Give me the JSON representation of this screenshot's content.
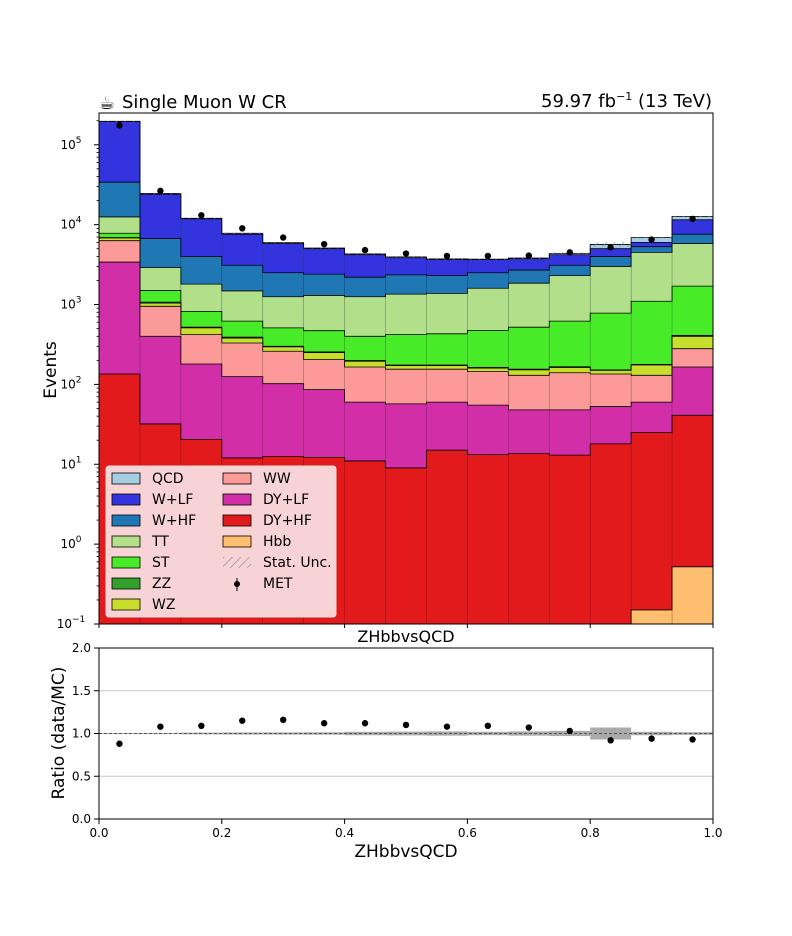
{
  "chart_data": [
    {
      "type": "stacked-histogram",
      "title_left": "Single Muon W CR",
      "title_left_icon": "coffee-cup",
      "title_right": "59.97 fb",
      "title_right_sup": "−1",
      "title_right_tail": " (13 TeV)",
      "ylabel": "Events",
      "xlabel": "ZHbbvsQCD",
      "yscale": "log",
      "ylim": [
        0.1,
        250000
      ],
      "xlim": [
        0.0,
        1.0
      ],
      "y_tick_labels": [
        "10",
        "10",
        "10",
        "10",
        "10",
        "10",
        "10"
      ],
      "y_tick_exps": [
        "−1",
        "0",
        "1",
        "2",
        "3",
        "4",
        "5"
      ],
      "bin_edges": [
        0.0,
        0.0667,
        0.1333,
        0.2,
        0.2667,
        0.3333,
        0.4,
        0.4667,
        0.5333,
        0.6,
        0.6667,
        0.7333,
        0.8,
        0.8667,
        0.9333,
        1.0
      ],
      "legend_placement": "lower-left",
      "legend": [
        {
          "label": "QCD",
          "kind": "box",
          "color": "#a6cee3"
        },
        {
          "label": "W+LF",
          "kind": "box",
          "color": "#3434df"
        },
        {
          "label": "W+HF",
          "kind": "box",
          "color": "#1f78b4"
        },
        {
          "label": "TT",
          "kind": "box",
          "color": "#b2df8a"
        },
        {
          "label": "ST",
          "kind": "box",
          "color": "#47eb28"
        },
        {
          "label": "ZZ",
          "kind": "box",
          "color": "#33a02c"
        },
        {
          "label": "WZ",
          "kind": "box",
          "color": "#c8de2c"
        },
        {
          "label": "WW",
          "kind": "box",
          "color": "#fb9a99"
        },
        {
          "label": "DY+LF",
          "kind": "box",
          "color": "#d12ea8"
        },
        {
          "label": "DY+HF",
          "kind": "box",
          "color": "#e31a1c"
        },
        {
          "label": "Hbb",
          "kind": "box",
          "color": "#fdbf6f"
        },
        {
          "label": "Stat. Unc.",
          "kind": "hatch",
          "color": "#888888"
        },
        {
          "label": "MET",
          "kind": "marker",
          "color": "#000000"
        }
      ],
      "stack_cumulative": [
        {
          "name": "Hbb",
          "color": "#fdbf6f",
          "values": [
            0.1,
            0.1,
            0.1,
            0.1,
            0.1,
            0.1,
            0.1,
            0.1,
            0.1,
            0.1,
            0.1,
            0.1,
            0.1,
            0.15,
            0.52
          ]
        },
        {
          "name": "DY+HF",
          "color": "#e31a1c",
          "values": [
            135,
            32,
            20.5,
            12,
            12.5,
            12.2,
            11,
            9,
            15,
            13.2,
            13.6,
            13,
            18,
            25,
            41
          ]
        },
        {
          "name": "DY+LF",
          "color": "#d12ea8",
          "values": [
            3400,
            400,
            180,
            125,
            102,
            86,
            60,
            57,
            60,
            55,
            48,
            48,
            53,
            60,
            165
          ]
        },
        {
          "name": "WW",
          "color": "#fb9a99",
          "values": [
            6300,
            950,
            420,
            330,
            260,
            205,
            165,
            155,
            155,
            145,
            130,
            140,
            135,
            130,
            280
          ]
        },
        {
          "name": "WZ",
          "color": "#c8de2c",
          "values": [
            6800,
            1040,
            510,
            380,
            295,
            250,
            195,
            172,
            172,
            160,
            152,
            163,
            150,
            175,
            400
          ]
        },
        {
          "name": "ZZ",
          "color": "#33a02c",
          "values": [
            6900,
            1070,
            520,
            390,
            300,
            255,
            200,
            175,
            175,
            163,
            155,
            166,
            152,
            178,
            410
          ]
        },
        {
          "name": "ST",
          "color": "#47eb28",
          "values": [
            7800,
            1500,
            820,
            620,
            510,
            470,
            400,
            420,
            430,
            475,
            520,
            620,
            780,
            1100,
            1700
          ]
        },
        {
          "name": "TT",
          "color": "#b2df8a",
          "values": [
            12500,
            2900,
            1800,
            1480,
            1250,
            1300,
            1250,
            1350,
            1380,
            1600,
            1850,
            2300,
            3000,
            4500,
            5800
          ]
        },
        {
          "name": "W+HF",
          "color": "#1f78b4",
          "values": [
            34000,
            6700,
            4000,
            3100,
            2500,
            2400,
            2200,
            2350,
            2300,
            2500,
            2700,
            3100,
            4000,
            5300,
            7600
          ]
        },
        {
          "name": "W+LF",
          "color": "#3434df",
          "values": [
            195000,
            24000,
            11800,
            7600,
            5800,
            5000,
            4200,
            3850,
            3650,
            3650,
            3750,
            4200,
            5000,
            6000,
            11500
          ]
        },
        {
          "name": "QCD",
          "color": "#a6cee3",
          "values": [
            197000,
            24500,
            12000,
            7800,
            5950,
            5100,
            4300,
            3950,
            3720,
            3700,
            3820,
            4350,
            5650,
            6900,
            12700
          ]
        }
      ],
      "data_series": {
        "name": "MET",
        "x": [
          0.0333,
          0.1,
          0.1667,
          0.2333,
          0.3,
          0.3667,
          0.4333,
          0.5,
          0.5667,
          0.6333,
          0.7,
          0.7667,
          0.8333,
          0.9,
          0.9667
        ],
        "y": [
          175000,
          26500,
          13100,
          9000,
          6900,
          5700,
          4800,
          4350,
          4050,
          4050,
          4100,
          4500,
          5200,
          6500,
          11800
        ]
      }
    },
    {
      "type": "scatter",
      "title": "ZHbbvsQCD",
      "xlabel": "ZHbbvsQCD",
      "ylabel": "Ratio (data/MC)",
      "ylim": [
        0.0,
        2.0
      ],
      "xlim": [
        0.0,
        1.0
      ],
      "grid": true,
      "x_tick_labels": [
        "0.0",
        "0.2",
        "0.4",
        "0.6",
        "0.8",
        "1.0"
      ],
      "x_ticks": [
        0.0,
        0.2,
        0.4,
        0.6,
        0.8,
        1.0
      ],
      "y_tick_labels": [
        "0.0",
        "0.5",
        "1.0",
        "1.5",
        "2.0"
      ],
      "y_ticks": [
        0.0,
        0.5,
        1.0,
        1.5,
        2.0
      ],
      "band_halfwidth": [
        0.005,
        0.005,
        0.01,
        0.012,
        0.013,
        0.014,
        0.02,
        0.022,
        0.025,
        0.02,
        0.025,
        0.03,
        0.07,
        0.02,
        0.015
      ],
      "x": [
        0.0333,
        0.1,
        0.1667,
        0.2333,
        0.3,
        0.3667,
        0.4333,
        0.5,
        0.5667,
        0.6333,
        0.7,
        0.7667,
        0.8333,
        0.9,
        0.9667
      ],
      "y": [
        0.88,
        1.08,
        1.09,
        1.15,
        1.16,
        1.12,
        1.12,
        1.1,
        1.08,
        1.09,
        1.07,
        1.03,
        0.92,
        0.94,
        0.93
      ]
    }
  ]
}
